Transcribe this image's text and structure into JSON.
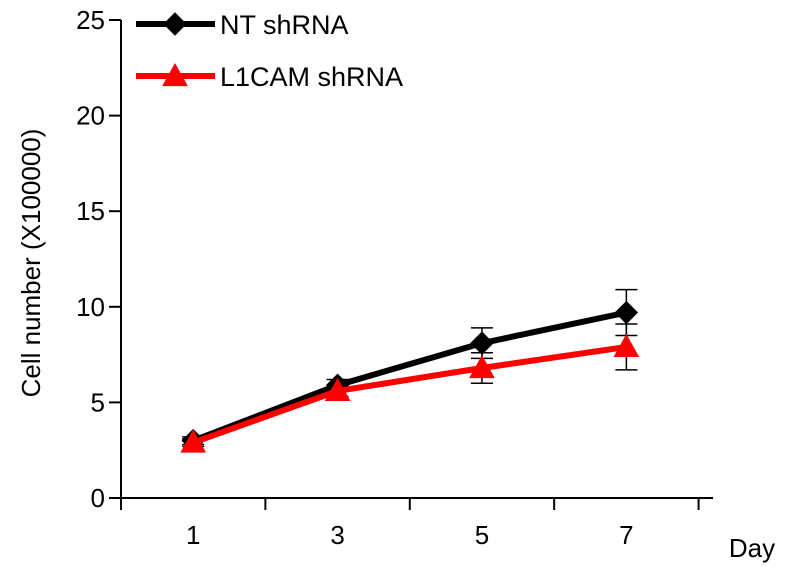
{
  "chart_data": {
    "type": "line",
    "x": [
      1,
      3,
      5,
      7
    ],
    "xticks": [
      "1",
      "3",
      "5",
      "7"
    ],
    "yticks": [
      "0",
      "5",
      "10",
      "15",
      "20",
      "25"
    ],
    "xlabel": "Day",
    "ylabel": "Cell number (X100000)",
    "ylim": [
      0,
      25
    ],
    "grid": false,
    "legend_position": "top-left",
    "series": [
      {
        "name": "NT shRNA",
        "values": [
          3.0,
          5.9,
          8.1,
          9.7
        ],
        "errors": [
          0.2,
          0.3,
          0.8,
          1.2
        ],
        "color": "#000000",
        "marker": "diamond"
      },
      {
        "name": "L1CAM shRNA",
        "values": [
          2.9,
          5.6,
          6.8,
          7.9
        ],
        "errors": [
          0.2,
          0.3,
          0.8,
          1.2
        ],
        "color": "#ff0000",
        "marker": "triangle"
      }
    ]
  }
}
